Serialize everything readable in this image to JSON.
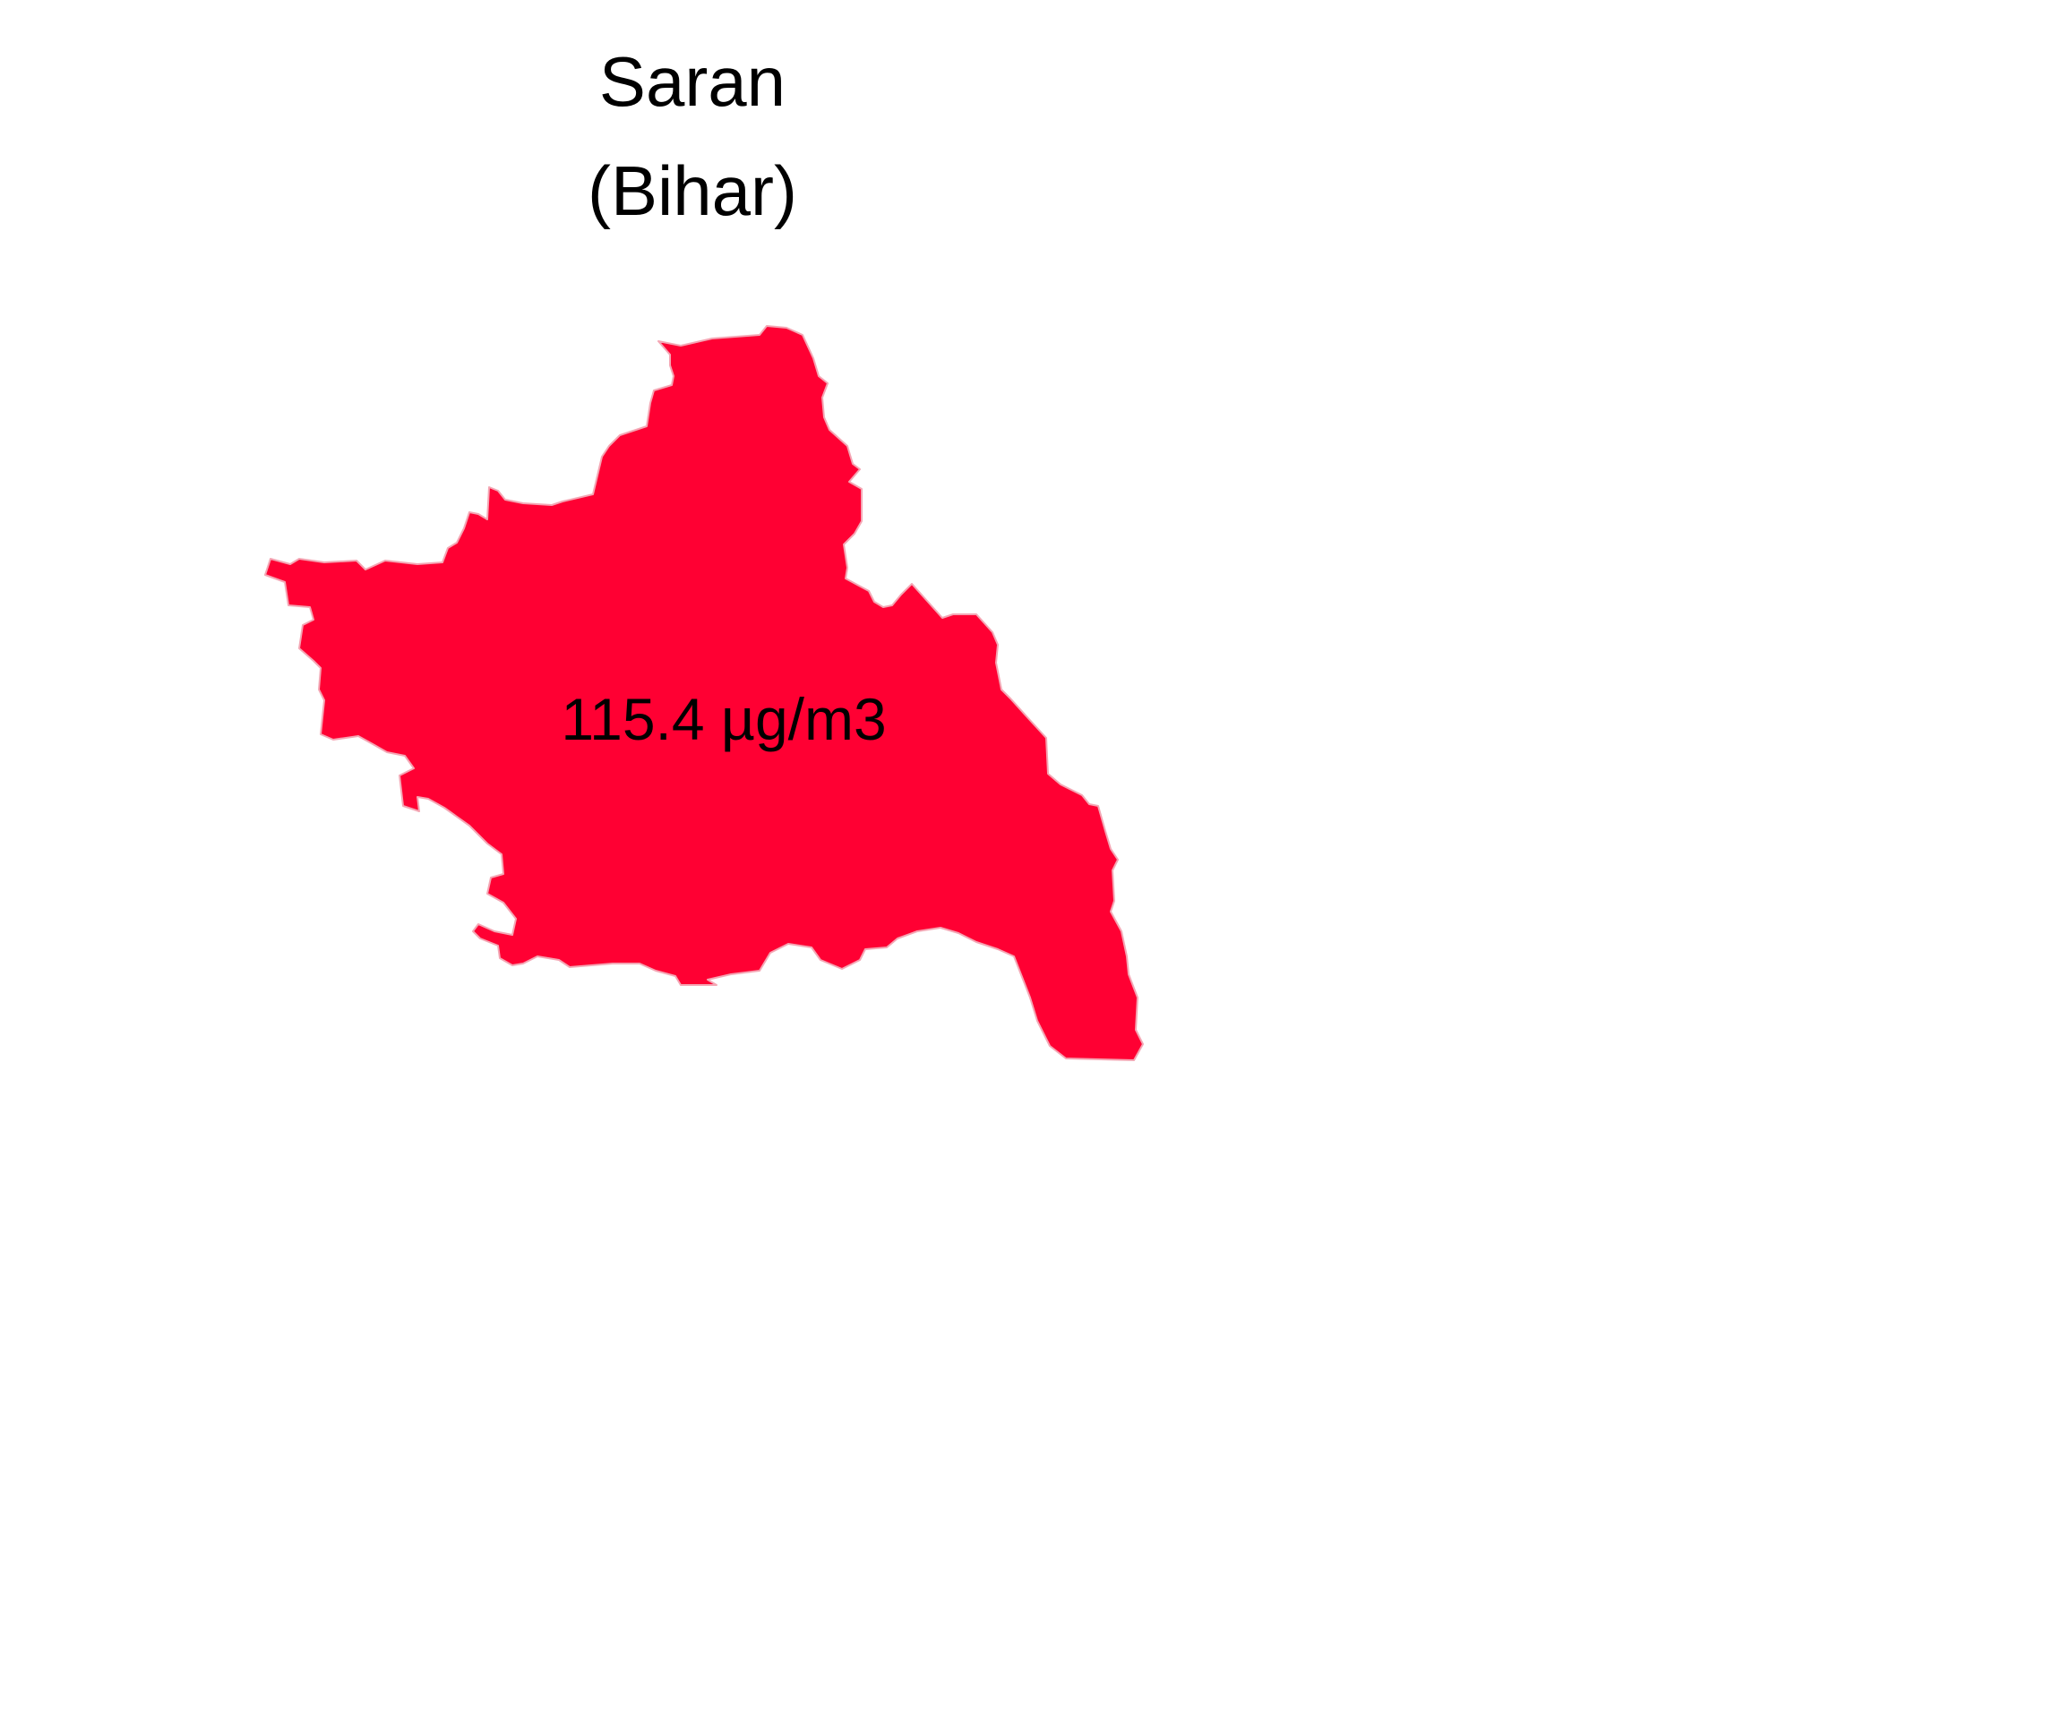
{
  "title": {
    "district": "Saran",
    "state": "(Bihar)"
  },
  "region": {
    "fill_color": "#ff0033",
    "stroke_color": "#f4a6b4",
    "value_label": "115.4 µg/m3"
  }
}
